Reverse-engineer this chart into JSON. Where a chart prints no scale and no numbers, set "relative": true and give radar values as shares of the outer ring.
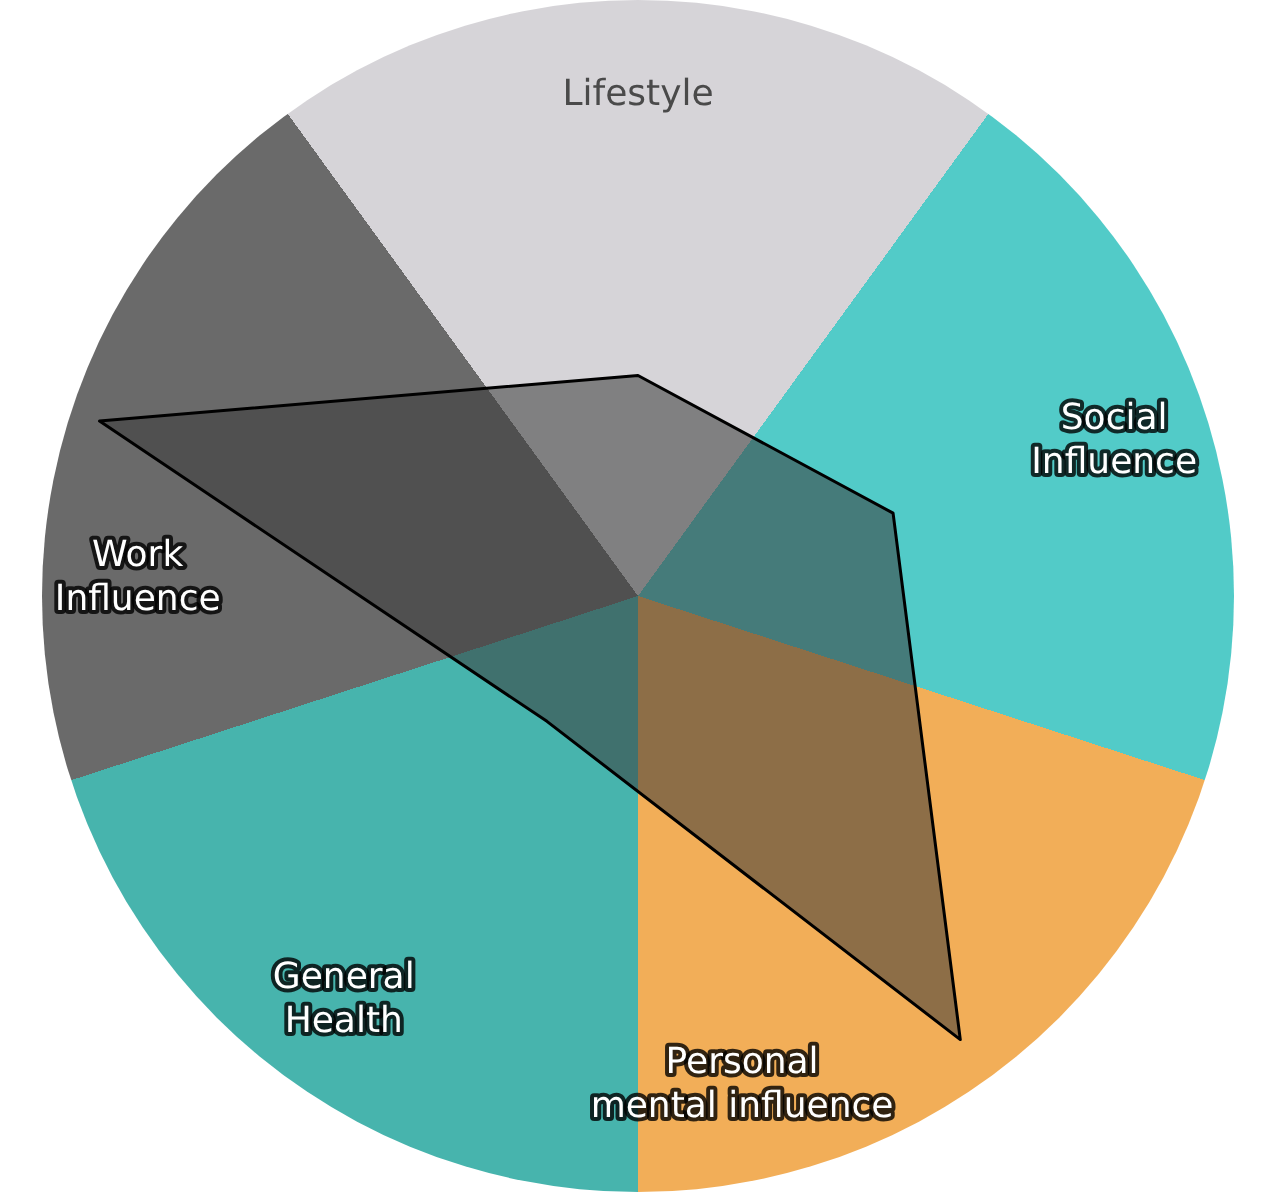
{
  "chart_data": {
    "type": "radar",
    "relative": true,
    "categories": [
      "Lifestyle",
      "Social Influence",
      "Personal mental influence",
      "General Health",
      "Work Influence"
    ],
    "series": [
      {
        "color": "#3a3a3a",
        "values": [
          0.37,
          0.45,
          0.92,
          0.26,
          0.95
        ]
      }
    ],
    "legend": false,
    "grid": false
  }
}
